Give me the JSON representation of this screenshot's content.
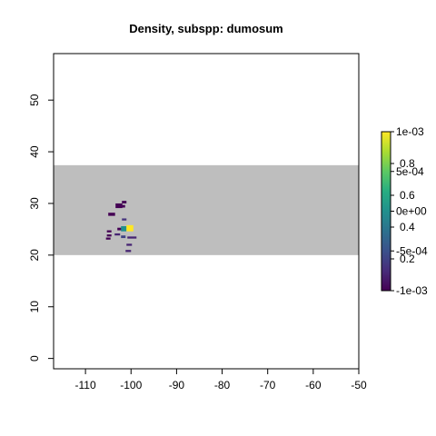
{
  "chart_data": {
    "type": "heatmap",
    "title": "Density, subspp: dumosum",
    "xlabel": "",
    "ylabel": "",
    "xlim": [
      -117,
      -50
    ],
    "ylim": [
      -2,
      59
    ],
    "x_ticks": [
      -110,
      -100,
      -90,
      -80,
      -70,
      -60,
      -50
    ],
    "x_tick_labels": [
      "-110",
      "-100",
      "-90",
      "-80",
      "-70",
      "-60",
      "-50"
    ],
    "y_ticks": [
      0,
      10,
      20,
      30,
      40,
      50
    ],
    "y_tick_labels": [
      "0",
      "10",
      "20",
      "30",
      "40",
      "50"
    ],
    "grid": false,
    "background_band": {
      "y_from": 20,
      "y_to": 37.4,
      "color": "#bebebe"
    },
    "colorbar": {
      "colormap": "viridis",
      "min": -0.001,
      "max": 0.001,
      "labels_left_set": [
        "1e-03",
        "5e-04",
        "0e+00",
        "-5e-04",
        "-1e-03"
      ],
      "labels_left_values": [
        0.001,
        0.0005,
        0,
        -0.0005,
        -0.001
      ],
      "labels_right_set": [
        "0.8",
        "0.6",
        "0.4",
        "0.2"
      ],
      "labels_right_positions": [
        0.8,
        0.6,
        0.4,
        0.2
      ],
      "placement": "right"
    },
    "cells": [
      {
        "x": -102.0,
        "y": 30.0,
        "w": 1.0,
        "h": 0.5,
        "value": 0.0
      },
      {
        "x": -103.4,
        "y": 29.1,
        "w": 1.5,
        "h": 0.9,
        "value": 0.0
      },
      {
        "x": -102.3,
        "y": 29.2,
        "w": 1.0,
        "h": 0.5,
        "value": 0.0
      },
      {
        "x": -105.0,
        "y": 27.6,
        "w": 1.5,
        "h": 0.6,
        "value": 0.0
      },
      {
        "x": -102.0,
        "y": 26.7,
        "w": 1.0,
        "h": 0.4,
        "value": 0.15
      },
      {
        "x": -103.0,
        "y": 24.8,
        "w": 1.5,
        "h": 0.5,
        "value": 0.0
      },
      {
        "x": -102.2,
        "y": 24.6,
        "w": 1.2,
        "h": 1.0,
        "value": 0.5
      },
      {
        "x": -101.0,
        "y": 24.6,
        "w": 1.5,
        "h": 1.2,
        "value": 1.0
      },
      {
        "x": -105.3,
        "y": 24.4,
        "w": 1.0,
        "h": 0.4,
        "value": 0.0
      },
      {
        "x": -105.3,
        "y": 23.6,
        "w": 1.0,
        "h": 0.4,
        "value": 0.0
      },
      {
        "x": -103.6,
        "y": 23.8,
        "w": 1.2,
        "h": 0.4,
        "value": 0.1
      },
      {
        "x": -102.2,
        "y": 23.3,
        "w": 1.0,
        "h": 0.5,
        "value": 0.2
      },
      {
        "x": -100.8,
        "y": 23.2,
        "w": 2.0,
        "h": 0.4,
        "value": 0.1
      },
      {
        "x": -105.5,
        "y": 23.0,
        "w": 1.0,
        "h": 0.4,
        "value": 0.0
      },
      {
        "x": -101.0,
        "y": 21.8,
        "w": 1.2,
        "h": 0.4,
        "value": 0.1
      },
      {
        "x": -101.2,
        "y": 20.6,
        "w": 1.2,
        "h": 0.4,
        "value": 0.1
      }
    ]
  }
}
